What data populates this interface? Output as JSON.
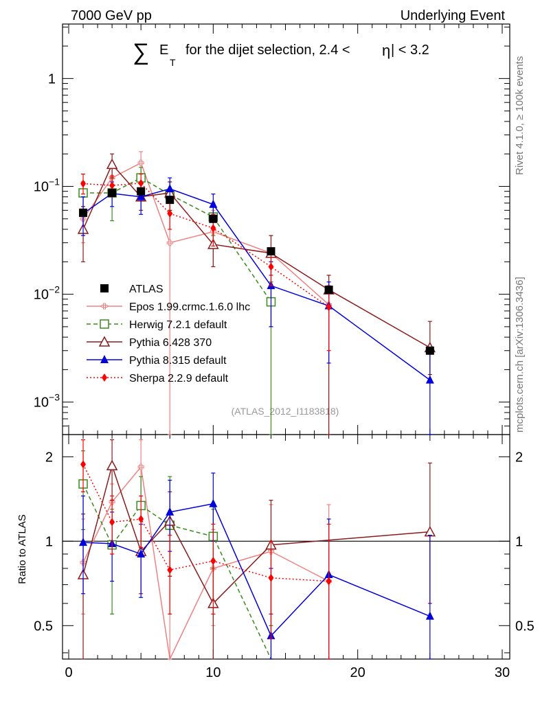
{
  "header": {
    "left": "7000 GeV pp",
    "right": "Underlying Event",
    "title_sigma": "∑",
    "title_e": "E",
    "title_sub": "T",
    "title_rest": "for the dijet selection, 2.4 <",
    "title_eta": "η",
    "title_end": "| < 3.2"
  },
  "side": {
    "rivet": "Rivet 4.1.0, ≥ 100k events",
    "mcplots": "mcplots.cern.ch [arXiv:1306.3436]"
  },
  "analysis_label": "(ATLAS_2012_I1183818)",
  "colors": {
    "atlas": "#000000",
    "epos": "#f08080",
    "herwig": "#3a8a1f",
    "pythia6": "#8b1a1a",
    "pythia8": "#0000dd",
    "sherpa": "#ff0000"
  },
  "chart_data": [
    {
      "type": "scatter",
      "title": "∑ E_T for the dijet selection, 2.4 < |η| < 3.2",
      "yscale": "log",
      "xlim": [
        0,
        30
      ],
      "ylim": [
        0.0005,
        3.2
      ],
      "yticks": [
        {
          "value": 0.001,
          "base": "10",
          "exp": "−3"
        },
        {
          "value": 0.01,
          "base": "10",
          "exp": "−2"
        },
        {
          "value": 0.1,
          "base": "10",
          "exp": "−1"
        },
        {
          "value": 1,
          "label": "1"
        }
      ],
      "legend_position": "left-middle",
      "series": [
        {
          "key": "atlas",
          "name": "ATLAS",
          "marker": "square-filled",
          "line": "none",
          "x": [
            1,
            3,
            5,
            7,
            10,
            14,
            18,
            25
          ],
          "y": [
            0.057,
            0.087,
            0.09,
            0.075,
            0.05,
            0.025,
            0.011,
            0.003
          ]
        },
        {
          "key": "epos",
          "name": "Epos 1.99.crmc.1.6.0 lhc",
          "marker": "cross",
          "line": "solid",
          "x": [
            1,
            3,
            5,
            7,
            10,
            14,
            18
          ],
          "y": [
            0.05,
            0.12,
            0.165,
            0.03,
            0.038,
            0.024,
            0.008
          ],
          "err_lo": [
            0.03,
            0.08,
            0.12,
            0.0005,
            0.018,
            0.005,
            0.0005
          ],
          "err_hi": [
            0.08,
            0.15,
            0.21,
            0.08,
            0.06,
            0.035,
            0.015
          ]
        },
        {
          "key": "herwig",
          "name": "Herwig 7.2.1 default",
          "marker": "square-open",
          "line": "dashed",
          "x": [
            1,
            3,
            5,
            7,
            10,
            14
          ],
          "y": [
            0.087,
            0.087,
            0.12,
            0.084,
            0.052,
            0.0085
          ],
          "err_lo": [
            0.065,
            0.048,
            0.085,
            0.06,
            0.035,
            0.0005
          ],
          "err_hi": [
            0.11,
            0.12,
            0.15,
            0.11,
            0.07,
            0.013
          ]
        },
        {
          "key": "pythia6",
          "name": "Pythia 6.428 370",
          "marker": "triangle-open",
          "line": "solid",
          "x": [
            1,
            3,
            5,
            7,
            10,
            14,
            18,
            25
          ],
          "y": [
            0.04,
            0.16,
            0.08,
            0.087,
            0.029,
            0.024,
            0.011,
            0.0032
          ],
          "err_lo": [
            0.02,
            0.12,
            0.06,
            0.06,
            0.018,
            0.015,
            0.0005,
            0.0018
          ],
          "err_hi": [
            0.065,
            0.2,
            0.105,
            0.11,
            0.04,
            0.035,
            0.015,
            0.0056
          ]
        },
        {
          "key": "pythia8",
          "name": "Pythia 8.315 default",
          "marker": "triangle-filled",
          "line": "solid",
          "x": [
            1,
            3,
            5,
            7,
            10,
            14,
            18,
            25
          ],
          "y": [
            0.056,
            0.086,
            0.08,
            0.095,
            0.068,
            0.012,
            0.0078,
            0.0016
          ],
          "err_lo": [
            0.035,
            0.065,
            0.055,
            0.07,
            0.05,
            0.005,
            0.0023,
            0.0005
          ],
          "err_hi": [
            0.08,
            0.11,
            0.105,
            0.12,
            0.085,
            0.02,
            0.013,
            0.003
          ]
        },
        {
          "key": "sherpa",
          "name": "Sherpa 2.2.9 default",
          "marker": "diamond",
          "line": "dotted",
          "x": [
            1,
            3,
            5,
            7,
            10,
            14,
            18
          ],
          "y": [
            0.106,
            0.102,
            0.107,
            0.056,
            0.041,
            0.018,
            0.0076
          ],
          "err_lo": [
            0.085,
            0.08,
            0.085,
            0.04,
            0.028,
            0.012,
            0.003
          ],
          "err_hi": [
            0.13,
            0.125,
            0.13,
            0.075,
            0.055,
            0.025,
            0.012
          ]
        }
      ],
      "legend": [
        "ATLAS",
        "Epos 1.99.crmc.1.6.0 lhc",
        "Herwig 7.2.1 default",
        "Pythia 6.428 370",
        "Pythia 8.315 default",
        "Sherpa 2.2.9 default"
      ]
    },
    {
      "type": "line",
      "title": "Ratio to ATLAS",
      "ylabel": "Ratio to ATLAS",
      "yscale": "log",
      "xlim": [
        0,
        30
      ],
      "ylim": [
        0.38,
        2.4
      ],
      "xticks": [
        0,
        10,
        20,
        30
      ],
      "yticks": [
        0.5,
        1,
        2
      ],
      "series": [
        {
          "key": "epos",
          "x": [
            1,
            3,
            5,
            7,
            10,
            14,
            18
          ],
          "y": [
            0.84,
            1.38,
            1.84,
            0.36,
            0.8,
            0.92,
            0.72
          ],
          "err_lo": [
            0.55,
            0.9,
            1.3,
            0.3,
            0.5,
            0.5,
            0.3
          ],
          "err_hi": [
            1.2,
            1.6,
            2.3,
            1.1,
            1.1,
            1.35,
            1.35
          ]
        },
        {
          "key": "herwig",
          "x": [
            1,
            3,
            5,
            7,
            10,
            14
          ],
          "y": [
            1.6,
            0.97,
            1.34,
            1.14,
            1.04,
            0.33
          ],
          "err_lo": [
            1.1,
            0.55,
            1.0,
            0.75,
            0.8,
            0.3
          ],
          "err_hi": [
            2.1,
            1.3,
            1.7,
            1.7,
            1.3,
            0.5
          ]
        },
        {
          "key": "pythia6",
          "x": [
            1,
            3,
            5,
            7,
            10,
            14,
            25
          ],
          "y": [
            0.76,
            1.86,
            0.92,
            1.18,
            0.6,
            0.97,
            1.08
          ],
          "err_lo": [
            0.35,
            1.4,
            0.65,
            0.75,
            0.38,
            0.55,
            0.6
          ],
          "err_hi": [
            1.25,
            2.3,
            1.2,
            1.5,
            0.85,
            1.4,
            1.9
          ]
        },
        {
          "key": "pythia8",
          "x": [
            1,
            3,
            5,
            7,
            10,
            14,
            18,
            25
          ],
          "y": [
            0.99,
            0.98,
            0.9,
            1.27,
            1.36,
            0.46,
            0.76,
            0.54
          ],
          "err_lo": [
            0.65,
            0.72,
            0.63,
            0.92,
            1.0,
            0.35,
            0.35,
            0.35
          ],
          "err_hi": [
            1.45,
            1.27,
            1.15,
            1.65,
            1.75,
            0.8,
            1.2,
            1.05
          ]
        },
        {
          "key": "sherpa",
          "x": [
            1,
            3,
            5,
            7,
            10,
            14,
            18
          ],
          "y": [
            1.88,
            1.17,
            1.2,
            0.79,
            0.85,
            0.74,
            0.72
          ],
          "err_lo": [
            1.5,
            0.9,
            0.95,
            0.55,
            0.55,
            0.45,
            0.3
          ],
          "err_hi": [
            2.3,
            1.45,
            1.45,
            1.05,
            1.15,
            1.0,
            1.15
          ]
        }
      ]
    }
  ]
}
